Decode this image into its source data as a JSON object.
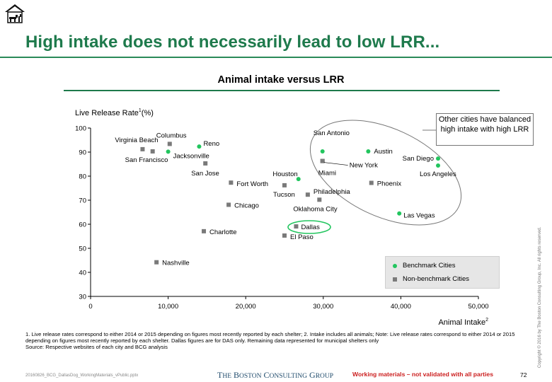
{
  "header": {
    "title": "High intake does not necessarily lead to low LRR...",
    "logo_icon": "house-animal-icon"
  },
  "chart_data": {
    "type": "scatter",
    "title": "Animal intake versus LRR",
    "ylabel": "Live Release Rate",
    "ylabel_sup": "1",
    "ylabel_unit": "(%)",
    "xlabel": "Animal Intake",
    "xlabel_sup": "2",
    "xlim": [
      0,
      50000
    ],
    "ylim": [
      30,
      100
    ],
    "x_ticks": [
      0,
      10000,
      20000,
      30000,
      40000,
      50000
    ],
    "x_tick_labels": [
      "0",
      "10,000",
      "20,000",
      "30,000",
      "40,000",
      "50,000"
    ],
    "y_ticks": [
      30,
      40,
      50,
      60,
      70,
      80,
      90,
      100
    ],
    "y_tick_labels": [
      "30",
      "40",
      "50",
      "60",
      "70",
      "80",
      "90",
      "100"
    ],
    "grid": false,
    "legend_position": "bottom-right",
    "series": [
      {
        "name": "Benchmark Cities",
        "color": "#22c55e",
        "marker": "circle",
        "points": [
          {
            "label": "Reno",
            "x": 14000,
            "y": 92.3
          },
          {
            "label": "Jacksonville",
            "x": 10000,
            "y": 90.2
          },
          {
            "label": "Houston",
            "x": 26800,
            "y": 78.8
          },
          {
            "label": "San Antonio",
            "x": 29900,
            "y": 90.3
          },
          {
            "label": "Austin",
            "x": 35800,
            "y": 90.3
          },
          {
            "label": "San Diego",
            "x": 44800,
            "y": 87.3
          },
          {
            "label": "Los Angeles",
            "x": 44800,
            "y": 84.4
          },
          {
            "label": "Las Vegas",
            "x": 39800,
            "y": 64.5
          }
        ]
      },
      {
        "name": "Non-benchmark Cities",
        "color": "#7a7a7a",
        "marker": "square",
        "points": [
          {
            "label": "Virginia Beach",
            "x": 6700,
            "y": 91.2
          },
          {
            "label": "San Francisco",
            "x": 8000,
            "y": 90.3
          },
          {
            "label": "Columbus",
            "x": 10200,
            "y": 93.4
          },
          {
            "label": "San Jose",
            "x": 14800,
            "y": 85.3
          },
          {
            "label": "Fort Worth",
            "x": 18100,
            "y": 77.3
          },
          {
            "label": "Chicago",
            "x": 17800,
            "y": 68.1
          },
          {
            "label": "Charlotte",
            "x": 14600,
            "y": 57.1
          },
          {
            "label": "Nashville",
            "x": 8500,
            "y": 44.2
          },
          {
            "label": "Tucson",
            "x": 25000,
            "y": 76.2
          },
          {
            "label": "Miami",
            "x": 29900,
            "y": 86.3
          },
          {
            "label": "New York",
            "x": 29900,
            "y": 86.3
          },
          {
            "label": "Philadelphia",
            "x": 28000,
            "y": 72.3
          },
          {
            "label": "Oklahoma City",
            "x": 29500,
            "y": 70.2
          },
          {
            "label": "Phoenix",
            "x": 36200,
            "y": 77.2
          },
          {
            "label": "Dallas",
            "x": 26500,
            "y": 59.1
          },
          {
            "label": "El Paso",
            "x": 25000,
            "y": 55.3
          }
        ]
      }
    ],
    "annotations": [
      {
        "text": "Other cities have balanced high intake with high LRR",
        "target": "ellipse around San Antonio, Austin, San Diego, Los Angeles, Las Vegas, Miami, Phoenix"
      },
      {
        "text": "",
        "target": "Dallas highlighted with green ellipse"
      }
    ]
  },
  "callout": {
    "text": "Other cities have balanced high intake with high LRR"
  },
  "legend": {
    "benchmark": "Benchmark Cities",
    "non_benchmark": "Non-benchmark Cities"
  },
  "footer": {
    "footnote": "1. Live release rates correspond to either 2014 or 2015 depending on figures most recently reported by each shelter; 2. Intake includes all animals; Note: Live release rates correspond to either 2014 or 2015 depending on figures most recently reported by each shelter. Dallas figures are for DAS only. Remaining data represented for municipal shelters only",
    "source": "Source: Respective websites of each city and BCG analysis",
    "file_name": "20160826_BCG_DallasDog_WorkingMaterials_vPublic.pptx",
    "brand": "The Boston Consulting Group",
    "warning": "Working materials – not validated with all parties",
    "page_number": "72",
    "copyright": "Copyright © 2016 by The Boston Consulting Group, Inc. All rights reserved."
  }
}
